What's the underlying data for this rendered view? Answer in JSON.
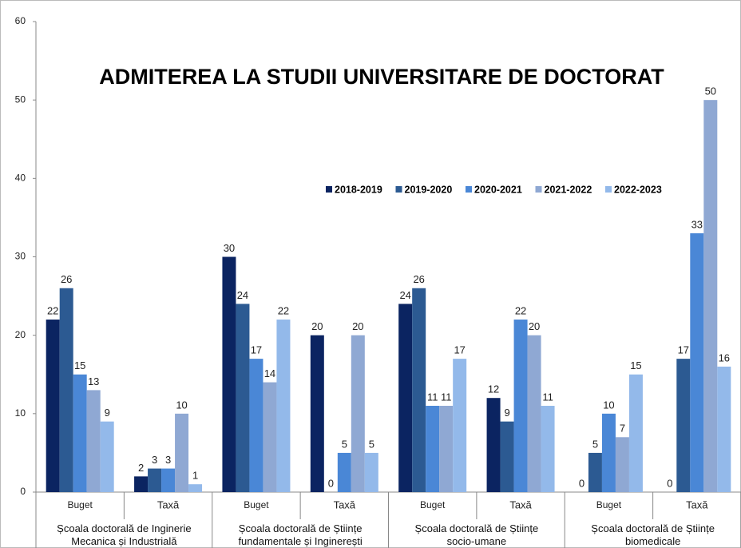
{
  "chart_data": {
    "type": "bar",
    "title": "ADMITEREA LA STUDII UNIVERSITARE DE DOCTORAT",
    "categories": [
      "Buget",
      "Taxă",
      "Buget",
      "Taxă",
      "Buget",
      "Taxă",
      "Buget",
      "Taxă"
    ],
    "groups": [
      "Școala doctorală de Inginerie Mecanica și Industrială",
      "Școala doctorală de Științe fundamentale  și Inginerești",
      "Școala doctorală de Științe socio-umane",
      "Școala doctorală de Științe biomedicale"
    ],
    "series": [
      {
        "name": "2018-2019",
        "color": "#0b2461",
        "values": [
          22,
          2,
          30,
          20,
          24,
          12,
          0,
          0
        ]
      },
      {
        "name": "2019-2020",
        "color": "#2c5a92",
        "values": [
          26,
          3,
          24,
          0,
          26,
          9,
          5,
          17
        ]
      },
      {
        "name": "2020-2021",
        "color": "#4a87d6",
        "values": [
          15,
          3,
          17,
          5,
          11,
          22,
          10,
          33
        ]
      },
      {
        "name": "2021-2022",
        "color": "#8fa8d3",
        "values": [
          13,
          10,
          14,
          20,
          11,
          20,
          7,
          50
        ]
      },
      {
        "name": "2022-2023",
        "color": "#93b9ea",
        "values": [
          9,
          1,
          22,
          5,
          17,
          11,
          15,
          16
        ]
      }
    ],
    "ylim": [
      0,
      60
    ],
    "yticks": [
      0,
      10,
      20,
      30,
      40,
      50,
      60
    ],
    "grid": false,
    "legend": "top-right",
    "data_labels": true
  }
}
